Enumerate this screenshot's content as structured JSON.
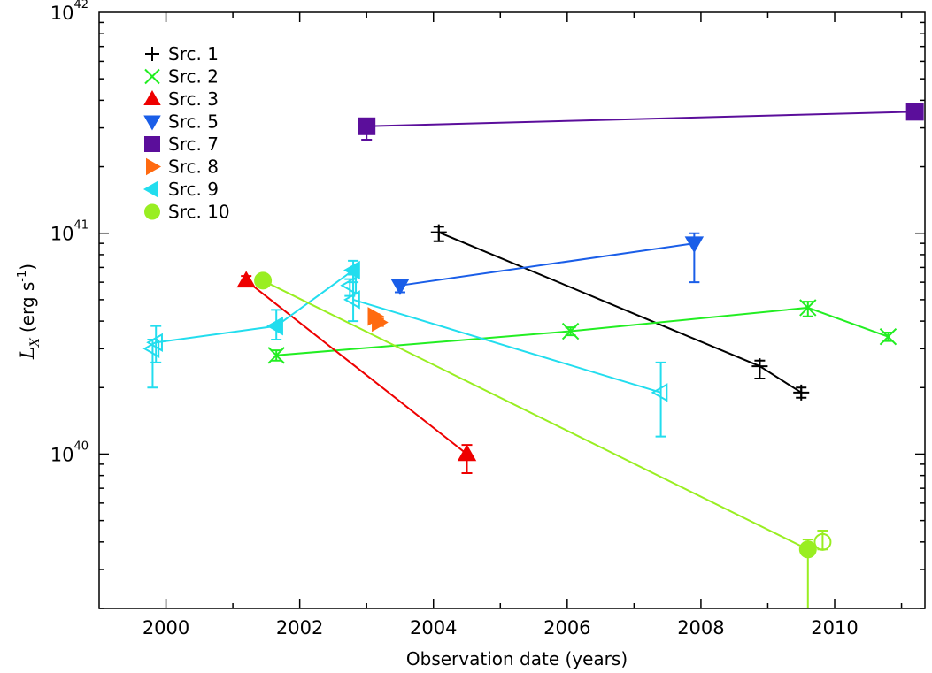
{
  "chart_data": {
    "type": "scatter",
    "xlabel": "Observation date (years)",
    "ylabel": "L_X (erg s^-1)",
    "ylabel_parts": {
      "main": "L",
      "sub": "X",
      "unit_open": "(erg s",
      "unit_exp": "-1",
      "unit_close": ")"
    },
    "xlim": [
      1999.0,
      2011.35
    ],
    "ylim": [
      2e+39,
      1e+42
    ],
    "yscale": "log",
    "x_ticks": [
      2000,
      2002,
      2004,
      2006,
      2008,
      2010
    ],
    "x_tick_labels": [
      "2000",
      "2002",
      "2004",
      "2006",
      "2008",
      "2010"
    ],
    "y_ticks": [
      1e+40,
      1e+41,
      1e+42
    ],
    "y_tick_labels": [
      {
        "base": "10",
        "exp": "40"
      },
      {
        "base": "10",
        "exp": "41"
      },
      {
        "base": "10",
        "exp": "42"
      }
    ],
    "legend_position": "top-left",
    "series": [
      {
        "name": "Src. 1",
        "color": "#000000",
        "marker": "plus",
        "points": [
          {
            "x": 2004.08,
            "y": 1.01e+41,
            "ylo": 9.2e+40,
            "yhi": 1.07e+41,
            "filled": true
          },
          {
            "x": 2008.88,
            "y": 2.5e+40,
            "ylo": 2.2e+40,
            "yhi": 2.65e+40,
            "filled": true
          },
          {
            "x": 2009.5,
            "y": 1.9e+40,
            "ylo": 1.8e+40,
            "yhi": 2e+40,
            "filled": true
          }
        ]
      },
      {
        "name": "Src. 2",
        "color": "#22ee22",
        "marker": "cross",
        "points": [
          {
            "x": 2001.65,
            "y": 2.8e+40,
            "ylo": 2.65e+40,
            "yhi": 2.95e+40,
            "filled": true
          },
          {
            "x": 2006.05,
            "y": 3.6e+40,
            "ylo": 3.45e+40,
            "yhi": 3.75e+40,
            "filled": true
          },
          {
            "x": 2009.6,
            "y": 4.6e+40,
            "ylo": 4.2e+40,
            "yhi": 4.9e+40,
            "filled": true
          },
          {
            "x": 2010.8,
            "y": 3.4e+40,
            "ylo": 3.25e+40,
            "yhi": 3.55e+40,
            "filled": true
          }
        ]
      },
      {
        "name": "Src. 3",
        "color": "#ee0000",
        "marker": "triangle-up",
        "points": [
          {
            "x": 2001.2,
            "y": 6.1e+40,
            "ylo": 5.8e+40,
            "yhi": 6.4e+40,
            "filled": true
          },
          {
            "x": 2004.5,
            "y": 1e+40,
            "ylo": 8.2e+39,
            "yhi": 1.1e+40,
            "filled": true
          }
        ]
      },
      {
        "name": "Src. 5",
        "color": "#1a5ee8",
        "marker": "triangle-down",
        "points": [
          {
            "x": 2003.5,
            "y": 5.8e+40,
            "ylo": 5.4e+40,
            "yhi": 5.9e+40,
            "filled": true
          },
          {
            "x": 2007.9,
            "y": 9e+40,
            "ylo": 6e+40,
            "yhi": 1e+41,
            "filled": true
          }
        ]
      },
      {
        "name": "Src. 7",
        "color": "#5b0e9b",
        "marker": "square",
        "points": [
          {
            "x": 2003.0,
            "y": 3.05e+41,
            "ylo": 2.65e+41,
            "yhi": 3.15e+41,
            "filled": true
          },
          {
            "x": 2011.2,
            "y": 3.55e+41,
            "ylo": 3.35e+41,
            "yhi": 3.65e+41,
            "filled": true
          }
        ]
      },
      {
        "name": "Src. 8",
        "color": "#ff6a10",
        "marker": "triangle-right",
        "points": [
          {
            "x": 2003.12,
            "y": 4.2e+40,
            "ylo": 4e+40,
            "yhi": 4.3e+40,
            "filled": true
          },
          {
            "x": 2003.18,
            "y": 3.95e+40,
            "ylo": 3.8e+40,
            "yhi": 4.1e+40,
            "filled": true
          }
        ]
      },
      {
        "name": "Src. 9",
        "color": "#22ddee",
        "marker": "triangle-left",
        "points": [
          {
            "x": 1999.85,
            "y": 3.2e+40,
            "ylo": 2.6e+40,
            "yhi": 3.8e+40,
            "filled": false
          },
          {
            "x": 1999.8,
            "y": 3e+40,
            "ylo": 2e+40,
            "yhi": 3.3e+40,
            "filled": false
          },
          {
            "x": 2001.65,
            "y": 3.8e+40,
            "ylo": 3.3e+40,
            "yhi": 4.5e+40,
            "filled": true
          },
          {
            "x": 2002.8,
            "y": 6.8e+40,
            "ylo": 6e+40,
            "yhi": 7.5e+40,
            "filled": true
          },
          {
            "x": 2002.75,
            "y": 5.8e+40,
            "ylo": 5.2e+40,
            "yhi": 6.2e+40,
            "filled": false
          },
          {
            "x": 2002.8,
            "y": 5e+40,
            "ylo": 4e+40,
            "yhi": 6.5e+40,
            "filled": false
          },
          {
            "x": 2007.4,
            "y": 1.9e+40,
            "ylo": 1.2e+40,
            "yhi": 2.6e+40,
            "filled": false
          }
        ],
        "line_x": [
          1999.85,
          2001.65,
          2002.8,
          2002.8,
          2007.4
        ],
        "line_y": [
          3.2e+40,
          3.8e+40,
          6.8e+40,
          5e+40,
          1.9e+40
        ]
      },
      {
        "name": "Src. 10",
        "color": "#99ee22",
        "marker": "circle",
        "points": [
          {
            "x": 2001.45,
            "y": 6.1e+40,
            "ylo": 5.8e+40,
            "yhi": 6.3e+40,
            "filled": true
          },
          {
            "x": 2009.6,
            "y": 3.7e+39,
            "ylo": 2e+39,
            "yhi": 4.1e+39,
            "filled": true
          },
          {
            "x": 2009.82,
            "y": 4e+39,
            "ylo": 3.7e+39,
            "yhi": 4.5e+39,
            "filled": false
          }
        ],
        "line_x": [
          2001.45,
          2009.6
        ],
        "line_y": [
          6.1e+40,
          3.7e+39
        ]
      }
    ]
  }
}
